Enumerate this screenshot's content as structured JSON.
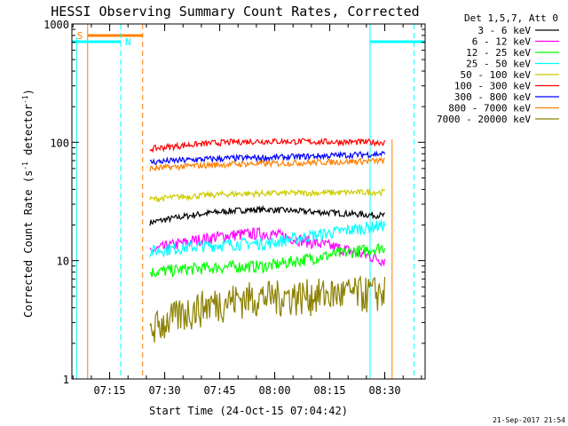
{
  "chart_data": {
    "type": "line",
    "title": "HESSI Observing Summary Count Rates, Corrected",
    "xlabel": "Start Time (24-Oct-15 07:04:42)",
    "ylabel_main": "Corrected Count Rate (s",
    "ylabel_sup1": "-1",
    "ylabel_mid": " detector",
    "ylabel_sup2": "-1",
    "ylabel_end": ")",
    "y_scale": "log",
    "ylim": [
      1,
      1000
    ],
    "xlim": [
      "07:04:42",
      "08:41:00"
    ],
    "x_tick_labels": [
      "07:15",
      "07:30",
      "07:45",
      "08:00",
      "08:15",
      "08:30"
    ],
    "y_tick_labels": [
      "1",
      "10",
      "100",
      "1000"
    ],
    "legend_title": "Det 1,5,7, Att 0",
    "legend_placement": "right",
    "series": [
      {
        "name": "3 - 6 keV",
        "color": "#000000",
        "values_start": 21,
        "values_mid": 27,
        "values_end": 24
      },
      {
        "name": "6 - 12 keV",
        "color": "#ff00ff",
        "values_start": 12,
        "values_mid": 17,
        "values_end": 10
      },
      {
        "name": "12 - 25 keV",
        "color": "#00ff00",
        "values_start": 8,
        "values_mid": 9,
        "values_end": 13
      },
      {
        "name": "25 - 50 keV",
        "color": "#00ffff",
        "values_start": 12,
        "values_mid": 14,
        "values_end": 20
      },
      {
        "name": "50 - 100 keV",
        "color": "#cccc00",
        "values_start": 33,
        "values_mid": 37,
        "values_end": 38
      },
      {
        "name": "100 - 300 keV",
        "color": "#ff0000",
        "values_start": 88,
        "values_mid": 102,
        "values_end": 100
      },
      {
        "name": "300 - 800 keV",
        "color": "#0000ff",
        "values_start": 68,
        "values_mid": 74,
        "values_end": 80
      },
      {
        "name": "800 - 7000 keV",
        "color": "#ff7f00",
        "values_start": 60,
        "values_mid": 66,
        "values_end": 70
      },
      {
        "name": "7000 - 20000 keV",
        "color": "#8b8000",
        "values_start": 2.6,
        "values_mid": 5,
        "values_end": 5.5
      }
    ],
    "data_window": {
      "start": "07:26",
      "end": "08:30"
    },
    "flags": [
      {
        "label": "S",
        "color": "#ff7f00"
      },
      {
        "label": "N",
        "color": "#00ffff"
      }
    ]
  },
  "footer": {
    "timestamp": "21-Sep-2017 21:54"
  }
}
